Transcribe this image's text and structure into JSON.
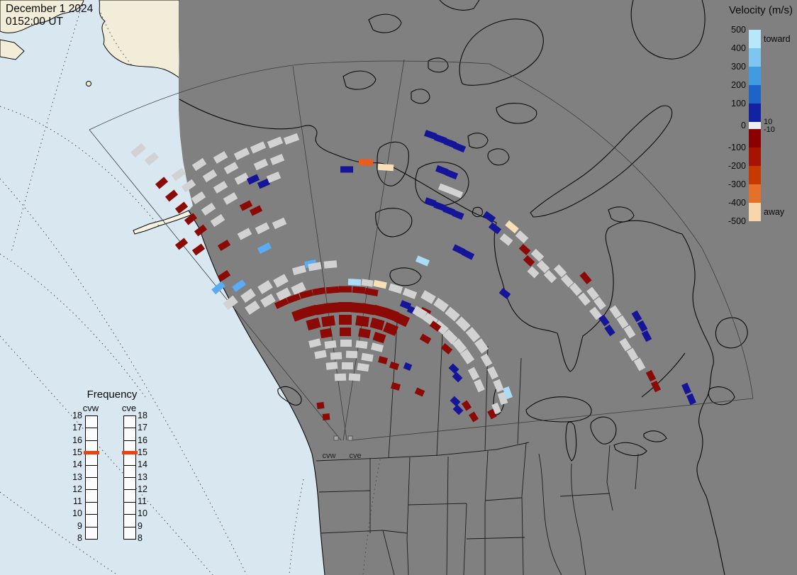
{
  "header": {
    "date": "December 1 2024",
    "time": "0152:00 UT"
  },
  "velocity_legend": {
    "title": "Velocity (m/s)",
    "toward_label": "toward",
    "away_label": "away",
    "ticks": [
      "500",
      "400",
      "300",
      "200",
      "100",
      "0",
      "-100",
      "-200",
      "-300",
      "-400",
      "-500"
    ],
    "near_zero_ticks": [
      "10",
      "-10"
    ],
    "segments": [
      {
        "color": "#b7e7fb",
        "h": 26
      },
      {
        "color": "#7cc6f0",
        "h": 26
      },
      {
        "color": "#409be0",
        "h": 26
      },
      {
        "color": "#1e64c8",
        "h": 26
      },
      {
        "color": "#1322a0",
        "h": 26
      },
      {
        "color": "#efefef",
        "h": 10
      },
      {
        "color": "#8b0000",
        "h": 26
      },
      {
        "color": "#a81200",
        "h": 26
      },
      {
        "color": "#c63a00",
        "h": 26
      },
      {
        "color": "#e4702a",
        "h": 26
      },
      {
        "color": "#f7d6ac",
        "h": 26
      }
    ]
  },
  "frequency_legend": {
    "title": "Frequency",
    "columns": [
      {
        "label": "cvw"
      },
      {
        "label": "cve"
      }
    ],
    "ticks": [
      "18",
      "17",
      "16",
      "15",
      "14",
      "13",
      "12",
      "11",
      "10",
      "9",
      "8"
    ],
    "marker_value": "15",
    "marker_color": "#e8440e"
  },
  "map": {
    "radar_labels": [
      {
        "text": "cvw"
      },
      {
        "text": "cve"
      }
    ],
    "colors": {
      "night_region": "#808080",
      "ocean_sunlit": "#d9e7f1",
      "land_sunlit": "#f1edd8",
      "outline": "#0a0a0a"
    }
  },
  "chart_data": {
    "type": "map-scatter",
    "title": "SuperDARN line-of-sight velocity fan plot, cvw/cve radars",
    "legend_position": "right",
    "color_key": {
      "lg": "#d2d2d2",
      "dr": "#8b0a06",
      "db": "#15159a",
      "lb": "#5aacf5",
      "pb": "#aadcf8",
      "or": "#e85c1e",
      "cr": "#f8dfb6"
    },
    "cells": [
      [
        195,
        212,
        20,
        -40,
        "lg",
        10
      ],
      [
        214,
        224,
        18,
        -39,
        "lg",
        10
      ],
      [
        228,
        258,
        16,
        -40,
        "dr"
      ],
      [
        242,
        276,
        16,
        -39,
        "dr"
      ],
      [
        256,
        293,
        16,
        -38,
        "dr"
      ],
      [
        269,
        309,
        16,
        -38,
        "dr"
      ],
      [
        283,
        325,
        16,
        -37,
        "dr"
      ],
      [
        252,
        246,
        18,
        -36,
        "lg",
        10
      ],
      [
        266,
        262,
        18,
        -35,
        "lg",
        10
      ],
      [
        280,
        279,
        18,
        -34,
        "lg",
        10
      ],
      [
        294,
        295,
        18,
        -34,
        "lg",
        10
      ],
      [
        307,
        311,
        18,
        -33,
        "lg",
        10
      ],
      [
        281,
        232,
        18,
        -33,
        "lg",
        10
      ],
      [
        296,
        248,
        18,
        -32,
        "lg",
        10
      ],
      [
        311,
        264,
        18,
        -31,
        "lg",
        10
      ],
      [
        325,
        280,
        18,
        -30,
        "lg",
        10
      ],
      [
        311,
        222,
        18,
        -30,
        "lg",
        10
      ],
      [
        326,
        237,
        18,
        -29,
        "lg",
        10
      ],
      [
        341,
        252,
        18,
        -28,
        "lg",
        10
      ],
      [
        341,
        217,
        20,
        -26,
        "lg",
        10
      ],
      [
        364,
        208,
        20,
        -24,
        "lg",
        10
      ],
      [
        388,
        201,
        20,
        -22,
        "lg",
        10
      ],
      [
        411,
        196,
        20,
        -20,
        "lg",
        10
      ],
      [
        357,
        253,
        16,
        -25,
        "db"
      ],
      [
        372,
        259,
        16,
        -24,
        "db"
      ],
      [
        368,
        232,
        18,
        -24,
        "lg",
        10
      ],
      [
        391,
        225,
        18,
        -22,
        "lg",
        10
      ],
      [
        386,
        250,
        18,
        -22,
        "lg",
        10
      ],
      [
        347,
        290,
        16,
        -27,
        "dr"
      ],
      [
        361,
        297,
        16,
        -26,
        "dr"
      ],
      [
        256,
        344,
        16,
        -38,
        "dr"
      ],
      [
        280,
        352,
        16,
        -36,
        "dr"
      ],
      [
        316,
        389,
        16,
        -33,
        "dr"
      ],
      [
        489,
        239,
        18,
        0,
        "db"
      ],
      [
        516,
        229,
        20,
        2,
        "or"
      ],
      [
        544,
        236,
        22,
        4,
        "cr"
      ],
      [
        607,
        190,
        16,
        19,
        "db"
      ],
      [
        621,
        196,
        16,
        20,
        "db"
      ],
      [
        635,
        202,
        16,
        21,
        "db"
      ],
      [
        648,
        208,
        16,
        22,
        "db"
      ],
      [
        623,
        240,
        16,
        21,
        "db"
      ],
      [
        637,
        246,
        16,
        22,
        "db"
      ],
      [
        628,
        266,
        18,
        21,
        "lg"
      ],
      [
        643,
        272,
        18,
        22,
        "lg"
      ],
      [
        607,
        285,
        15,
        19,
        "db"
      ],
      [
        620,
        291,
        15,
        20,
        "db"
      ],
      [
        633,
        297,
        15,
        21,
        "db"
      ],
      [
        646,
        303,
        15,
        22,
        "db"
      ],
      [
        647,
        352,
        16,
        26,
        "db"
      ],
      [
        660,
        359,
        16,
        27,
        "db"
      ],
      [
        308,
        406,
        18,
        -40,
        "lb"
      ],
      [
        337,
        403,
        18,
        -36,
        "lb"
      ],
      [
        325,
        427,
        18,
        -38,
        "lg",
        12
      ],
      [
        350,
        417,
        18,
        -35,
        "lg",
        12
      ],
      [
        374,
        405,
        18,
        -32,
        "lg",
        12
      ],
      [
        396,
        396,
        18,
        -29,
        "lg",
        12
      ],
      [
        356,
        434,
        18,
        -34,
        "lg",
        12
      ],
      [
        378,
        424,
        18,
        -31,
        "lg",
        12
      ],
      [
        400,
        415,
        18,
        -28,
        "lg",
        12
      ],
      [
        421,
        407,
        18,
        -26,
        "lg",
        12
      ],
      [
        316,
        346,
        16,
        -32,
        "dr"
      ],
      [
        345,
        330,
        18,
        -28,
        "lg",
        10
      ],
      [
        370,
        322,
        18,
        -26,
        "lg",
        10
      ],
      [
        394,
        315,
        18,
        -24,
        "lg",
        10
      ],
      [
        373,
        350,
        18,
        -27,
        "lb"
      ],
      [
        438,
        372,
        16,
        -11,
        "lb"
      ],
      [
        422,
        381,
        18,
        -15,
        "lg",
        10
      ],
      [
        444,
        376,
        18,
        -10,
        "lg",
        10
      ],
      [
        466,
        373,
        18,
        -5,
        "lg",
        10
      ],
      [
        500,
        398,
        18,
        3,
        "pb"
      ],
      [
        536,
        401,
        18,
        12,
        "cr"
      ],
      [
        558,
        407,
        18,
        17,
        "lg",
        10
      ],
      [
        578,
        414,
        18,
        21,
        "lg",
        10
      ],
      [
        596,
        368,
        18,
        23,
        "pb"
      ],
      [
        518,
        399,
        16,
        8,
        "lg"
      ],
      [
        397,
        428,
        18,
        -25,
        "dr"
      ],
      [
        414,
        421,
        18,
        -20,
        "dr"
      ],
      [
        432,
        415,
        18,
        -15,
        "dr"
      ],
      [
        450,
        411,
        18,
        -10,
        "dr"
      ],
      [
        469,
        409,
        18,
        -5,
        "dr"
      ],
      [
        487,
        408,
        18,
        0,
        "dr"
      ],
      [
        506,
        409,
        18,
        5,
        "dr"
      ],
      [
        524,
        412,
        18,
        10,
        "dr"
      ],
      [
        422,
        444,
        18,
        -20,
        "dr",
        14
      ],
      [
        438,
        439,
        18,
        -15,
        "dr",
        14
      ],
      [
        454,
        436,
        18,
        -10,
        "dr",
        14
      ],
      [
        470,
        434,
        18,
        -5,
        "dr",
        14
      ],
      [
        487,
        433,
        18,
        0,
        "dr",
        14
      ],
      [
        504,
        434,
        18,
        5,
        "dr",
        14
      ],
      [
        520,
        436,
        18,
        10,
        "dr",
        14
      ],
      [
        536,
        439,
        18,
        15,
        "dr",
        14
      ],
      [
        552,
        444,
        18,
        20,
        "dr",
        14
      ],
      [
        567,
        451,
        18,
        25,
        "dr",
        14
      ],
      [
        442,
        457,
        18,
        -15,
        "dr",
        14
      ],
      [
        463,
        453,
        18,
        -8,
        "dr",
        14
      ],
      [
        487,
        451,
        18,
        0,
        "dr",
        14
      ],
      [
        511,
        453,
        18,
        8,
        "dr",
        14
      ],
      [
        532,
        457,
        18,
        15,
        "dr",
        14
      ],
      [
        551,
        464,
        18,
        22,
        "dr",
        14
      ],
      [
        460,
        470,
        16,
        -10,
        "dr",
        12
      ],
      [
        487,
        468,
        16,
        0,
        "dr",
        12
      ],
      [
        514,
        470,
        16,
        10,
        "dr",
        12
      ],
      [
        535,
        476,
        16,
        18,
        "dr",
        12
      ],
      [
        444,
        484,
        16,
        -14,
        "lg",
        10
      ],
      [
        466,
        486,
        16,
        -7,
        "lg",
        10
      ],
      [
        488,
        484,
        16,
        0,
        "lg",
        10
      ],
      [
        510,
        486,
        16,
        7,
        "lg",
        10
      ],
      [
        532,
        490,
        16,
        14,
        "lg",
        10
      ],
      [
        452,
        500,
        16,
        -10,
        "lg",
        10
      ],
      [
        474,
        502,
        16,
        -4,
        "lg",
        10
      ],
      [
        496,
        500,
        16,
        2,
        "lg",
        10
      ],
      [
        518,
        504,
        16,
        9,
        "lg",
        10
      ],
      [
        468,
        516,
        16,
        -6,
        "lg",
        10
      ],
      [
        490,
        516,
        16,
        1,
        "lg",
        10
      ],
      [
        512,
        518,
        16,
        8,
        "lg",
        10
      ],
      [
        480,
        532,
        16,
        -2,
        "lg",
        10
      ],
      [
        500,
        532,
        16,
        4,
        "lg",
        10
      ],
      [
        540,
        508,
        12,
        14,
        "dr"
      ],
      [
        556,
        516,
        12,
        18,
        "dr"
      ],
      [
        575,
        517,
        10,
        22,
        "db"
      ],
      [
        558,
        545,
        12,
        16,
        "dr"
      ],
      [
        592,
        553,
        12,
        24,
        "dr"
      ],
      [
        572,
        430,
        14,
        22,
        "db"
      ],
      [
        582,
        438,
        14,
        24,
        "db"
      ],
      [
        600,
        440,
        14,
        26,
        "dr"
      ],
      [
        604,
        419,
        18,
        30,
        "lg",
        12
      ],
      [
        622,
        430,
        18,
        35,
        "lg",
        12
      ],
      [
        638,
        443,
        18,
        40,
        "lg",
        12
      ],
      [
        653,
        457,
        18,
        45,
        "lg",
        12
      ],
      [
        667,
        472,
        18,
        50,
        "lg",
        12
      ],
      [
        679,
        488,
        18,
        55,
        "lg",
        12
      ],
      [
        592,
        441,
        18,
        30,
        "lg",
        12
      ],
      [
        607,
        451,
        18,
        35,
        "lg",
        12
      ],
      [
        622,
        462,
        18,
        40,
        "lg",
        12
      ],
      [
        635,
        475,
        18,
        45,
        "lg",
        12
      ],
      [
        648,
        488,
        18,
        50,
        "lg",
        12
      ],
      [
        659,
        503,
        18,
        55,
        "lg",
        12
      ],
      [
        614,
        460,
        14,
        36,
        "dr"
      ],
      [
        600,
        478,
        14,
        30,
        "dr"
      ],
      [
        630,
        492,
        14,
        40,
        "dr"
      ],
      [
        640,
        520,
        12,
        44,
        "db"
      ],
      [
        645,
        532,
        12,
        45,
        "db"
      ],
      [
        642,
        566,
        12,
        44,
        "db"
      ],
      [
        646,
        578,
        12,
        45,
        "db"
      ],
      [
        686,
        508,
        16,
        60,
        "lg",
        10
      ],
      [
        695,
        526,
        16,
        64,
        "lg",
        10
      ],
      [
        703,
        544,
        16,
        68,
        "lg",
        10
      ],
      [
        709,
        562,
        16,
        72,
        "lg",
        10
      ],
      [
        668,
        527,
        16,
        62,
        "lg",
        10
      ],
      [
        676,
        544,
        16,
        66,
        "lg",
        10
      ],
      [
        658,
        572,
        12,
        56,
        "dr"
      ],
      [
        668,
        588,
        12,
        58,
        "dr"
      ],
      [
        694,
        584,
        12,
        62,
        "dr"
      ],
      [
        716,
        554,
        16,
        70,
        "pb"
      ],
      [
        700,
        576,
        14,
        68,
        "lg"
      ],
      [
        452,
        572,
        10,
        -8,
        "dr"
      ],
      [
        460,
        588,
        10,
        -6,
        "dr"
      ],
      [
        690,
        306,
        16,
        36,
        "db"
      ],
      [
        698,
        322,
        16,
        38,
        "db"
      ],
      [
        722,
        320,
        18,
        40,
        "cr"
      ],
      [
        714,
        338,
        16,
        39,
        "lg",
        10
      ],
      [
        736,
        334,
        16,
        42,
        "lg",
        10
      ],
      [
        740,
        352,
        14,
        42,
        "dr"
      ],
      [
        746,
        368,
        14,
        43,
        "dr"
      ],
      [
        758,
        360,
        16,
        44,
        "lg",
        10
      ],
      [
        766,
        376,
        16,
        45,
        "lg",
        10
      ],
      [
        776,
        390,
        16,
        46,
        "lg",
        10
      ],
      [
        752,
        384,
        14,
        44,
        "lg",
        10
      ],
      [
        790,
        382,
        16,
        47,
        "lg",
        10
      ],
      [
        800,
        396,
        16,
        48,
        "lg",
        10
      ],
      [
        826,
        392,
        16,
        50,
        "dr"
      ],
      [
        812,
        408,
        16,
        49,
        "lg",
        10
      ],
      [
        824,
        422,
        16,
        51,
        "lg",
        10
      ],
      [
        836,
        414,
        16,
        52,
        "lg",
        10
      ],
      [
        846,
        428,
        16,
        53,
        "lg",
        10
      ],
      [
        840,
        442,
        16,
        52,
        "lg",
        10
      ],
      [
        852,
        452,
        14,
        54,
        "db"
      ],
      [
        860,
        466,
        14,
        55,
        "db"
      ],
      [
        868,
        440,
        16,
        56,
        "lg",
        10
      ],
      [
        878,
        454,
        16,
        57,
        "lg",
        10
      ],
      [
        888,
        468,
        16,
        58,
        "lg",
        10
      ],
      [
        898,
        446,
        14,
        60,
        "db"
      ],
      [
        906,
        460,
        14,
        61,
        "db"
      ],
      [
        912,
        474,
        14,
        62,
        "db"
      ],
      [
        882,
        486,
        16,
        58,
        "lg",
        10
      ],
      [
        892,
        500,
        16,
        60,
        "lg",
        10
      ],
      [
        902,
        514,
        16,
        61,
        "lg",
        10
      ],
      [
        918,
        530,
        14,
        63,
        "dr"
      ],
      [
        925,
        545,
        14,
        64,
        "dr"
      ],
      [
        968,
        548,
        14,
        66,
        "db"
      ],
      [
        975,
        563,
        14,
        67,
        "db"
      ],
      [
        712,
        414,
        14,
        38,
        "db"
      ]
    ]
  }
}
